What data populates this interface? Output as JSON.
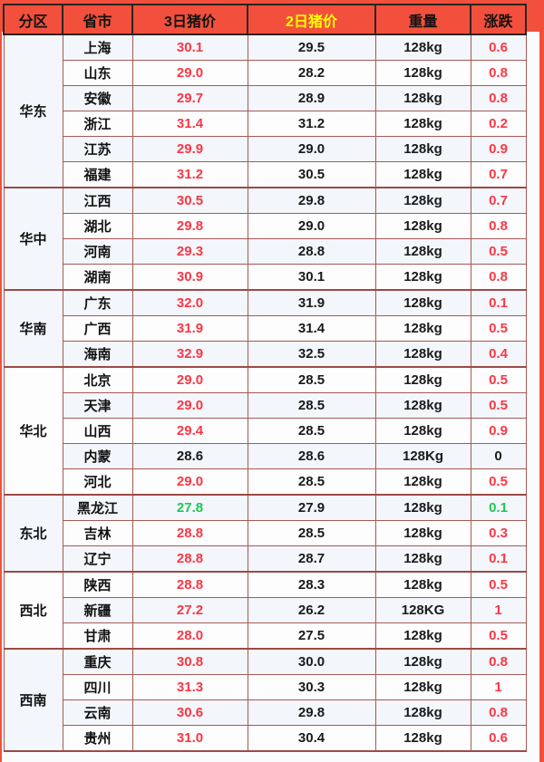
{
  "title": "regional-pig-price-table",
  "colors": {
    "header_bg": "#f2503c",
    "header_text": "#121212",
    "highlight_header_text": "#ffff00",
    "price_up": "#fa3744",
    "price_down": "#1fc750",
    "neutral": "#1a1a1a",
    "header_border": "#2a2320",
    "body_border": "#a65953",
    "row_bg_a": "#f3f6fb",
    "row_bg_b": "#fdfdfe"
  },
  "chart_data": {
    "type": "table",
    "columns": [
      "分区",
      "省市",
      "3日猪价",
      "2日猪价",
      "重量",
      "涨跌"
    ],
    "header_highlight_column": "2日猪价",
    "regions": [
      {
        "name": "华东",
        "rows": [
          {
            "province": "上海",
            "price3": "30.1",
            "price3_color": "red",
            "price2": "29.5",
            "weight": "128kg",
            "change": "0.6",
            "change_color": "red"
          },
          {
            "province": "山东",
            "price3": "29.0",
            "price3_color": "red",
            "price2": "28.2",
            "weight": "128kg",
            "change": "0.8",
            "change_color": "red"
          },
          {
            "province": "安徽",
            "price3": "29.7",
            "price3_color": "red",
            "price2": "28.9",
            "weight": "128kg",
            "change": "0.8",
            "change_color": "red"
          },
          {
            "province": "浙江",
            "price3": "31.4",
            "price3_color": "red",
            "price2": "31.2",
            "weight": "128kg",
            "change": "0.2",
            "change_color": "red"
          },
          {
            "province": "江苏",
            "price3": "29.9",
            "price3_color": "red",
            "price2": "29.0",
            "weight": "128kg",
            "change": "0.9",
            "change_color": "red"
          },
          {
            "province": "福建",
            "price3": "31.2",
            "price3_color": "red",
            "price2": "30.5",
            "weight": "128kg",
            "change": "0.7",
            "change_color": "red"
          }
        ]
      },
      {
        "name": "华中",
        "rows": [
          {
            "province": "江西",
            "price3": "30.5",
            "price3_color": "red",
            "price2": "29.8",
            "weight": "128kg",
            "change": "0.7",
            "change_color": "red"
          },
          {
            "province": "湖北",
            "price3": "29.8",
            "price3_color": "red",
            "price2": "29.0",
            "weight": "128kg",
            "change": "0.8",
            "change_color": "red"
          },
          {
            "province": "河南",
            "price3": "29.3",
            "price3_color": "red",
            "price2": "28.8",
            "weight": "128kg",
            "change": "0.5",
            "change_color": "red"
          },
          {
            "province": "湖南",
            "price3": "30.9",
            "price3_color": "red",
            "price2": "30.1",
            "weight": "128kg",
            "change": "0.8",
            "change_color": "red"
          }
        ]
      },
      {
        "name": "华南",
        "rows": [
          {
            "province": "广东",
            "price3": "32.0",
            "price3_color": "red",
            "price2": "31.9",
            "weight": "128kg",
            "change": "0.1",
            "change_color": "red"
          },
          {
            "province": "广西",
            "price3": "31.9",
            "price3_color": "red",
            "price2": "31.4",
            "weight": "128kg",
            "change": "0.5",
            "change_color": "red"
          },
          {
            "province": "海南",
            "price3": "32.9",
            "price3_color": "red",
            "price2": "32.5",
            "weight": "128kg",
            "change": "0.4",
            "change_color": "red"
          }
        ]
      },
      {
        "name": "华北",
        "rows": [
          {
            "province": "北京",
            "price3": "29.0",
            "price3_color": "red",
            "price2": "28.5",
            "weight": "128kg",
            "change": "0.5",
            "change_color": "red"
          },
          {
            "province": "天津",
            "price3": "29.0",
            "price3_color": "red",
            "price2": "28.5",
            "weight": "128kg",
            "change": "0.5",
            "change_color": "red"
          },
          {
            "province": "山西",
            "price3": "29.4",
            "price3_color": "red",
            "price2": "28.5",
            "weight": "128kg",
            "change": "0.9",
            "change_color": "red"
          },
          {
            "province": "内蒙",
            "price3": "28.6",
            "price3_color": "black",
            "price2": "28.6",
            "weight": "128Kg",
            "change": "0",
            "change_color": "black"
          },
          {
            "province": "河北",
            "price3": "29.0",
            "price3_color": "red",
            "price2": "28.5",
            "weight": "128kg",
            "change": "0.5",
            "change_color": "red"
          }
        ]
      },
      {
        "name": "东北",
        "rows": [
          {
            "province": "黑龙江",
            "price3": "27.8",
            "price3_color": "green",
            "price2": "27.9",
            "weight": "128kg",
            "change": "0.1",
            "change_color": "green"
          },
          {
            "province": "吉林",
            "price3": "28.8",
            "price3_color": "red",
            "price2": "28.5",
            "weight": "128kg",
            "change": "0.3",
            "change_color": "red"
          },
          {
            "province": "辽宁",
            "price3": "28.8",
            "price3_color": "red",
            "price2": "28.7",
            "weight": "128kg",
            "change": "0.1",
            "change_color": "red"
          }
        ]
      },
      {
        "name": "西北",
        "rows": [
          {
            "province": "陕西",
            "price3": "28.8",
            "price3_color": "red",
            "price2": "28.3",
            "weight": "128kg",
            "change": "0.5",
            "change_color": "red"
          },
          {
            "province": "新疆",
            "price3": "27.2",
            "price3_color": "red",
            "price2": "26.2",
            "weight": "128KG",
            "change": "1",
            "change_color": "red"
          },
          {
            "province": "甘肃",
            "price3": "28.0",
            "price3_color": "red",
            "price2": "27.5",
            "weight": "128kg",
            "change": "0.5",
            "change_color": "red"
          }
        ]
      },
      {
        "name": "西南",
        "rows": [
          {
            "province": "重庆",
            "price3": "30.8",
            "price3_color": "red",
            "price2": "30.0",
            "weight": "128kg",
            "change": "0.8",
            "change_color": "red"
          },
          {
            "province": "四川",
            "price3": "31.3",
            "price3_color": "red",
            "price2": "30.3",
            "weight": "128kg",
            "change": "1",
            "change_color": "red"
          },
          {
            "province": "云南",
            "price3": "30.6",
            "price3_color": "red",
            "price2": "29.8",
            "weight": "128kg",
            "change": "0.8",
            "change_color": "red"
          },
          {
            "province": "贵州",
            "price3": "31.0",
            "price3_color": "red",
            "price2": "30.4",
            "weight": "128kg",
            "change": "0.6",
            "change_color": "red"
          }
        ]
      }
    ]
  }
}
